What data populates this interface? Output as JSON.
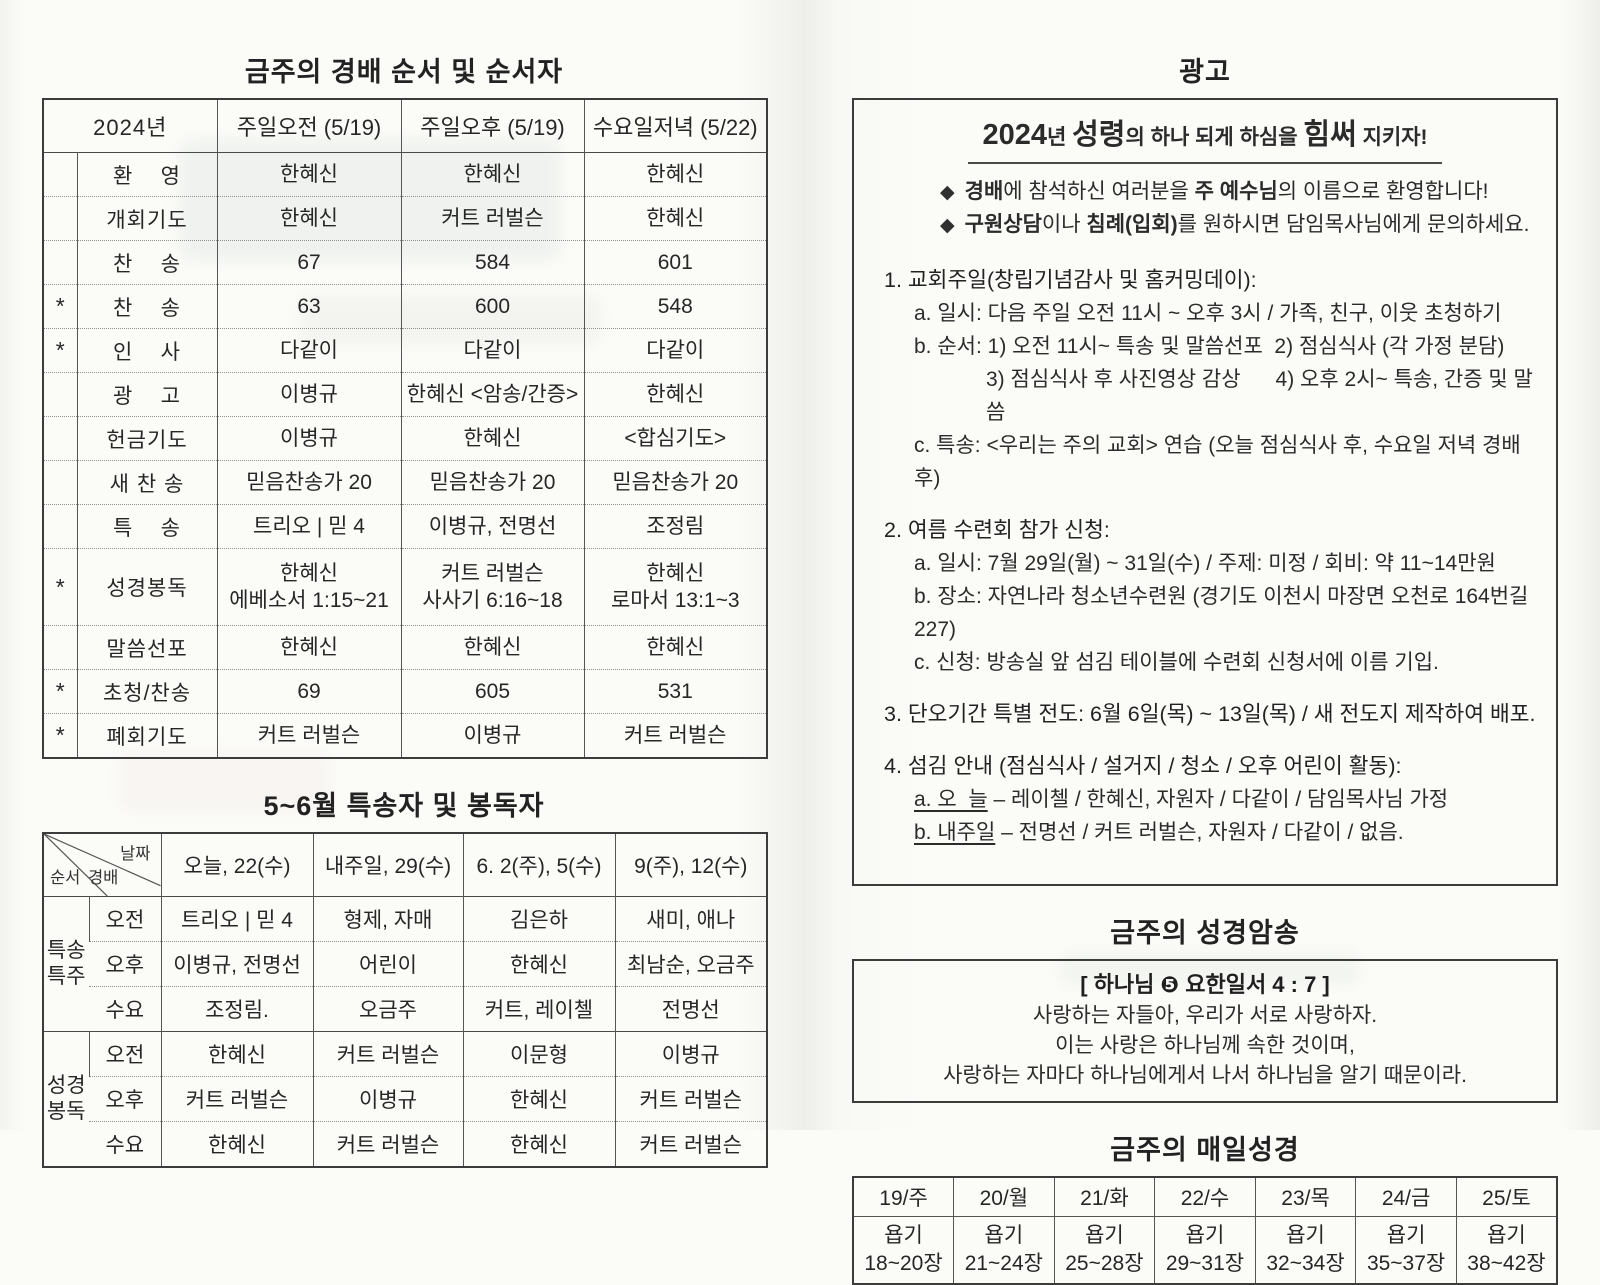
{
  "worship_table": {
    "title": "금주의 경배 순서 및 순서자",
    "header": {
      "year": "2024년",
      "cols": [
        "주일오전 (5/19)",
        "주일오후 (5/19)",
        "수요일저녁 (5/22)"
      ]
    },
    "rows": [
      {
        "star": "",
        "item": "환    영",
        "cells": [
          "한혜신",
          "한혜신",
          "한혜신"
        ]
      },
      {
        "star": "",
        "item": "개회기도",
        "cells": [
          "한혜신",
          "커트 러벌슨",
          "한혜신"
        ]
      },
      {
        "star": "",
        "item": "찬    송",
        "cells": [
          "67",
          "584",
          "601"
        ]
      },
      {
        "star": "*",
        "item": "찬    송",
        "cells": [
          "63",
          "600",
          "548"
        ]
      },
      {
        "star": "*",
        "item": "인    사",
        "cells": [
          "다같이",
          "다같이",
          "다같이"
        ]
      },
      {
        "star": "",
        "item": "광    고",
        "cells": [
          "이병규",
          "한혜신 <암송/간증>",
          "한혜신"
        ]
      },
      {
        "star": "",
        "item": "헌금기도",
        "cells": [
          "이병규",
          "한혜신",
          "<합심기도>"
        ]
      },
      {
        "star": "",
        "item": "새 찬 송",
        "cells": [
          "믿음찬송가 20",
          "믿음찬송가 20",
          "믿음찬송가 20"
        ]
      },
      {
        "star": "",
        "item": "특    송",
        "cells": [
          "트리오 | 믿 4",
          "이병규, 전명선",
          "조정림"
        ]
      },
      {
        "star": "*",
        "item": "성경봉독",
        "tall": true,
        "cells": [
          "한혜신\n에베소서 1:15~21",
          "커트 러벌슨\n사사기 6:16~18",
          "한혜신\n로마서 13:1~3"
        ]
      },
      {
        "star": "",
        "item": "말씀선포",
        "cells": [
          "한혜신",
          "한혜신",
          "한혜신"
        ]
      },
      {
        "star": "*",
        "item": "초청/찬송",
        "cells": [
          "69",
          "605",
          "531"
        ]
      },
      {
        "star": "*",
        "item": "폐회기도",
        "cells": [
          "커트 러벌슨",
          "이병규",
          "커트 러벌슨"
        ]
      }
    ]
  },
  "special_table": {
    "title": "5~6월 특송자 및 봉독자",
    "corner": {
      "date": "날짜",
      "order": "순서",
      "worship": "경배"
    },
    "date_cols": [
      "오늘, 22(수)",
      "내주일, 29(수)",
      "6. 2(주), 5(수)",
      "9(주), 12(수)"
    ],
    "groups": [
      {
        "label": "특송\n특주",
        "rows": [
          {
            "time": "오전",
            "cells": [
              "트리오 | 믿 4",
              "형제, 자매",
              "김은하",
              "새미, 애나"
            ]
          },
          {
            "time": "오후",
            "cells": [
              "이병규, 전명선",
              "어린이",
              "한혜신",
              "최남순, 오금주"
            ]
          },
          {
            "time": "수요",
            "cells": [
              "조정림.",
              "오금주",
              "커트, 레이첼",
              "전명선"
            ]
          }
        ]
      },
      {
        "label": "성경\n봉독",
        "rows": [
          {
            "time": "오전",
            "cells": [
              "한혜신",
              "커트 러벌슨",
              "이문형",
              "이병규"
            ]
          },
          {
            "time": "오후",
            "cells": [
              "커트 러벌슨",
              "이병규",
              "한혜신",
              "커트 러벌슨"
            ]
          },
          {
            "time": "수요",
            "cells": [
              "한혜신",
              "커트 러벌슨",
              "한혜신",
              "커트 러벌슨"
            ]
          }
        ]
      }
    ]
  },
  "announcements": {
    "title": "광고",
    "bullet_glyph": "◆",
    "slogan": [
      {
        "t": "2024",
        "big": true
      },
      {
        "t": "년 ",
        "big": false
      },
      {
        "t": "성령",
        "big": true
      },
      {
        "t": "의 하나 되게 하심을 ",
        "big": false
      },
      {
        "t": "힘써",
        "big": true
      },
      {
        "t": " 지키자!",
        "big": false
      }
    ],
    "bullets": [
      [
        {
          "t": "경배",
          "b": true
        },
        {
          "t": "에 참석하신 여러분을 ",
          "b": false
        },
        {
          "t": "주 예수님",
          "b": true
        },
        {
          "t": "의 이름으로 환영합니다!",
          "b": false
        }
      ],
      [
        {
          "t": "구원상담",
          "b": true
        },
        {
          "t": "이나 ",
          "b": false
        },
        {
          "t": "침례(입회)",
          "b": true
        },
        {
          "t": "를 원하시면 담임목사님에게 문의하세요.",
          "b": false
        }
      ]
    ],
    "items": [
      {
        "title": "1. 교회주일(창립기념감사 및 홈커밍데이):",
        "lines": [
          {
            "u": "",
            "t": "a. 일시: 다음 주일 오전 11시 ~ 오후 3시 / 가족, 친구, 이웃 초청하기",
            "indent": false
          },
          {
            "u": "",
            "t": "b. 순서: 1) 오전 11시~ 특송 및 말씀선포  2) 점심식사 (각 가정 분담)",
            "indent": false
          },
          {
            "u": "",
            "t": "3) 점심식사 후 사진영상 감상      4) 오후 2시~ 특송, 간증 및 말씀",
            "indent": true
          },
          {
            "u": "",
            "t": "c. 특송: <우리는 주의 교회> 연습 (오늘 점심식사 후, 수요일 저녁 경배 후)",
            "indent": false
          }
        ]
      },
      {
        "title": "2. 여름 수련회 참가 신청:",
        "lines": [
          {
            "u": "",
            "t": "a. 일시: 7월 29일(월) ~ 31일(수) / 주제: 미정 / 회비: 약 11~14만원",
            "indent": false
          },
          {
            "u": "",
            "t": "b. 장소: 자연나라 청소년수련원 (경기도 이천시 마장면 오천로 164번길 227)",
            "indent": false
          },
          {
            "u": "",
            "t": "c. 신청: 방송실 앞 섬김 테이블에 수련회 신청서에 이름 기입.",
            "indent": false
          }
        ]
      },
      {
        "title": "3. 단오기간 특별 전도: 6월 6일(목) ~ 13일(목) / 새 전도지 제작하여 배포.",
        "lines": []
      },
      {
        "title": "4. 섬김 안내 (점심식사 / 설거지 / 청소 / 오후 어린이 활동):",
        "lines": [
          {
            "u": "a. 오  늘",
            "t": " – 레이첼 / 한혜신, 자원자 / 다같이 / 담임목사님 가정",
            "indent": false
          },
          {
            "u": "b. 내주일",
            "t": " – 전명선 / 커트 러벌슨, 자원자 / 다같이 / 없음.",
            "indent": false
          }
        ]
      }
    ]
  },
  "memory_verse": {
    "title": "금주의 성경암송",
    "reference": "[ 하나님 ❺ 요한일서 4 : 7 ]",
    "lines": [
      "사랑하는 자들아, 우리가 서로 사랑하자.",
      "이는 사랑은 하나님께 속한 것이며,",
      "사랑하는 자마다 하나님에게서 나서 하나님을 알기 때문이라."
    ]
  },
  "daily_bible": {
    "title": "금주의 매일성경",
    "days": [
      "19/주",
      "20/월",
      "21/화",
      "22/수",
      "23/목",
      "24/금",
      "25/토"
    ],
    "readings": [
      "욥기\n18~20장",
      "욥기\n21~24장",
      "욥기\n25~28장",
      "욥기\n29~31장",
      "욥기\n32~34장",
      "욥기\n35~37장",
      "욥기\n38~42장"
    ]
  }
}
